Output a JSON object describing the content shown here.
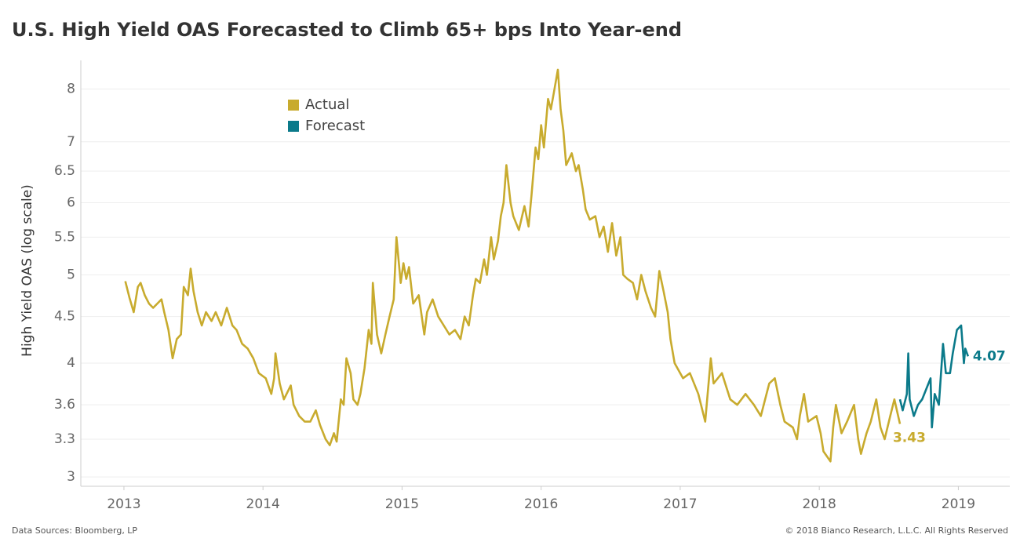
{
  "chart_data": {
    "type": "line",
    "title": "U.S. High Yield OAS Forecasted to Climb 65+ bps Into Year-end",
    "y_label": "High Yield OAS (log scale)",
    "source": "Data Sources: Bloomberg, LP",
    "copyright": "© 2018 Bianco Research, L.L.C. All Rights Reserved",
    "log_scale": true,
    "grid": true,
    "legend": "upper left",
    "xlim": [
      2012.69,
      2019.37
    ],
    "xticks": [
      2013,
      2014,
      2015,
      2016,
      2017,
      2018,
      2019
    ],
    "ylim": [
      2.93,
      8.6
    ],
    "yticks": [
      3,
      3.3,
      3.6,
      4,
      4.5,
      5,
      5.5,
      6,
      6.5,
      7,
      8
    ],
    "series": [
      {
        "name": "Actual",
        "color": "#c8ab2e",
        "x": [
          2013.01,
          2013.04,
          2013.07,
          2013.1,
          2013.12,
          2013.15,
          2013.18,
          2013.21,
          2013.24,
          2013.27,
          2013.29,
          2013.32,
          2013.35,
          2013.38,
          2013.41,
          2013.43,
          2013.46,
          2013.48,
          2013.5,
          2013.53,
          2013.56,
          2013.59,
          2013.63,
          2013.66,
          2013.7,
          2013.74,
          2013.78,
          2013.81,
          2013.85,
          2013.89,
          2013.93,
          2013.97,
          2014.02,
          2014.06,
          2014.08,
          2014.09,
          2014.12,
          2014.15,
          2014.2,
          2014.22,
          2014.26,
          2014.3,
          2014.34,
          2014.38,
          2014.41,
          2014.45,
          2014.48,
          2014.51,
          2014.53,
          2014.56,
          2014.58,
          2014.6,
          2014.63,
          2014.65,
          2014.68,
          2014.7,
          2014.73,
          2014.76,
          2014.78,
          2014.79,
          2014.82,
          2014.85,
          2014.88,
          2014.91,
          2014.94,
          2014.96,
          2014.99,
          2015.01,
          2015.03,
          2015.05,
          2015.08,
          2015.12,
          2015.16,
          2015.18,
          2015.22,
          2015.26,
          2015.3,
          2015.34,
          2015.38,
          2015.42,
          2015.45,
          2015.48,
          2015.51,
          2015.53,
          2015.56,
          2015.59,
          2015.61,
          2015.64,
          2015.66,
          2015.69,
          2015.71,
          2015.73,
          2015.75,
          2015.78,
          2015.8,
          2015.84,
          2015.88,
          2015.91,
          2015.93,
          2015.96,
          2015.98,
          2016.0,
          2016.02,
          2016.05,
          2016.07,
          2016.09,
          2016.12,
          2016.14,
          2016.16,
          2016.18,
          2016.22,
          2016.25,
          2016.27,
          2016.3,
          2016.32,
          2016.35,
          2016.39,
          2016.42,
          2016.45,
          2016.48,
          2016.51,
          2016.54,
          2016.57,
          2016.59,
          2016.62,
          2016.66,
          2016.69,
          2016.72,
          2016.75,
          2016.79,
          2016.82,
          2016.85,
          2016.88,
          2016.91,
          2016.93,
          2016.96,
          2017.02,
          2017.07,
          2017.13,
          2017.18,
          2017.22,
          2017.24,
          2017.3,
          2017.36,
          2017.41,
          2017.47,
          2017.53,
          2017.58,
          2017.64,
          2017.68,
          2017.72,
          2017.75,
          2017.81,
          2017.84,
          2017.86,
          2017.89,
          2017.92,
          2017.98,
          2018.01,
          2018.03,
          2018.08,
          2018.1,
          2018.12,
          2018.16,
          2018.2,
          2018.25,
          2018.28,
          2018.3,
          2018.34,
          2018.37,
          2018.41,
          2018.44,
          2018.47,
          2018.51,
          2018.54,
          2018.58
        ],
        "values": [
          4.92,
          4.72,
          4.55,
          4.85,
          4.9,
          4.75,
          4.65,
          4.6,
          4.65,
          4.7,
          4.55,
          4.35,
          4.05,
          4.25,
          4.3,
          4.85,
          4.75,
          5.08,
          4.8,
          4.55,
          4.4,
          4.55,
          4.45,
          4.55,
          4.4,
          4.6,
          4.4,
          4.35,
          4.2,
          4.15,
          4.05,
          3.9,
          3.85,
          3.7,
          3.85,
          4.1,
          3.8,
          3.65,
          3.78,
          3.6,
          3.5,
          3.45,
          3.45,
          3.55,
          3.42,
          3.3,
          3.25,
          3.35,
          3.28,
          3.65,
          3.6,
          4.05,
          3.9,
          3.65,
          3.6,
          3.7,
          3.95,
          4.35,
          4.2,
          4.9,
          4.3,
          4.1,
          4.3,
          4.5,
          4.7,
          5.5,
          4.9,
          5.15,
          4.95,
          5.1,
          4.65,
          4.75,
          4.3,
          4.55,
          4.7,
          4.5,
          4.4,
          4.3,
          4.35,
          4.25,
          4.5,
          4.4,
          4.75,
          4.95,
          4.9,
          5.2,
          5.0,
          5.5,
          5.2,
          5.45,
          5.8,
          6.0,
          6.6,
          6.0,
          5.8,
          5.6,
          5.95,
          5.65,
          6.1,
          6.9,
          6.7,
          7.3,
          6.9,
          7.8,
          7.6,
          7.9,
          8.4,
          7.6,
          7.2,
          6.6,
          6.8,
          6.5,
          6.6,
          6.2,
          5.9,
          5.75,
          5.8,
          5.5,
          5.65,
          5.3,
          5.7,
          5.25,
          5.5,
          5.0,
          4.95,
          4.9,
          4.7,
          5.0,
          4.8,
          4.6,
          4.5,
          5.05,
          4.8,
          4.55,
          4.25,
          4.0,
          3.85,
          3.9,
          3.7,
          3.45,
          4.05,
          3.8,
          3.9,
          3.65,
          3.6,
          3.7,
          3.6,
          3.5,
          3.8,
          3.85,
          3.6,
          3.45,
          3.4,
          3.3,
          3.5,
          3.7,
          3.45,
          3.5,
          3.35,
          3.2,
          3.12,
          3.4,
          3.6,
          3.35,
          3.45,
          3.6,
          3.3,
          3.18,
          3.35,
          3.45,
          3.65,
          3.4,
          3.3,
          3.5,
          3.65,
          3.43
        ]
      },
      {
        "name": "Forecast",
        "color": "#0b7a8a",
        "x": [
          2018.58,
          2018.6,
          2018.63,
          2018.64,
          2018.65,
          2018.68,
          2018.71,
          2018.74,
          2018.77,
          2018.8,
          2018.81,
          2018.83,
          2018.86,
          2018.89,
          2018.91,
          2018.94,
          2018.96,
          2018.99,
          2019.02,
          2019.04,
          2019.05,
          2019.07
        ],
        "values": [
          3.65,
          3.55,
          3.7,
          4.1,
          3.65,
          3.5,
          3.6,
          3.65,
          3.75,
          3.85,
          3.4,
          3.7,
          3.6,
          4.2,
          3.9,
          3.9,
          4.1,
          4.35,
          4.4,
          4.0,
          4.15,
          4.07
        ]
      }
    ]
  }
}
